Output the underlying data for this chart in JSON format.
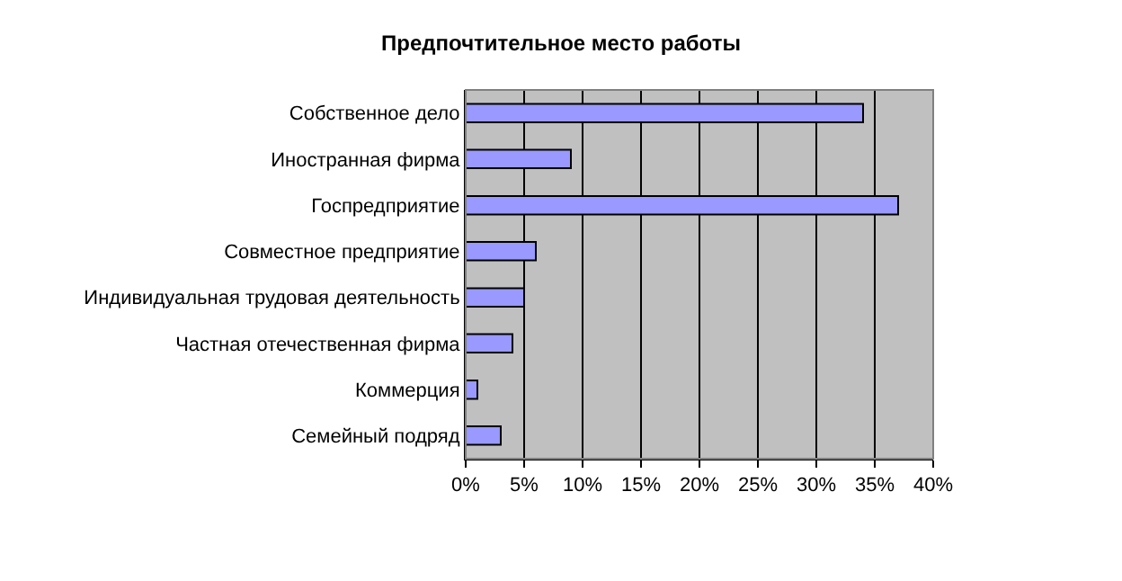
{
  "chart_data": {
    "type": "bar",
    "orientation": "horizontal",
    "title": "Предпочтительное место работы",
    "categories": [
      "Собственное дело",
      "Иностранная фирма",
      "Госпредприятие",
      "Совместное предприятие",
      "Индивидуальная трудовая деятельность",
      "Частная отечественная фирма",
      "Коммерция",
      "Семейный подряд"
    ],
    "values": [
      34,
      9,
      37,
      6,
      5,
      4,
      1,
      3
    ],
    "color": "#9999ff",
    "xlim": [
      0,
      40
    ],
    "xticks": [
      {
        "value": 0,
        "label": "0%"
      },
      {
        "value": 5,
        "label": "5%"
      },
      {
        "value": 10,
        "label": "10%"
      },
      {
        "value": 15,
        "label": "15%"
      },
      {
        "value": 20,
        "label": "20%"
      },
      {
        "value": 25,
        "label": "25%"
      },
      {
        "value": 30,
        "label": "30%"
      },
      {
        "value": 35,
        "label": "35%"
      },
      {
        "value": 40,
        "label": "40%"
      }
    ],
    "grid": "x",
    "legend": false
  }
}
